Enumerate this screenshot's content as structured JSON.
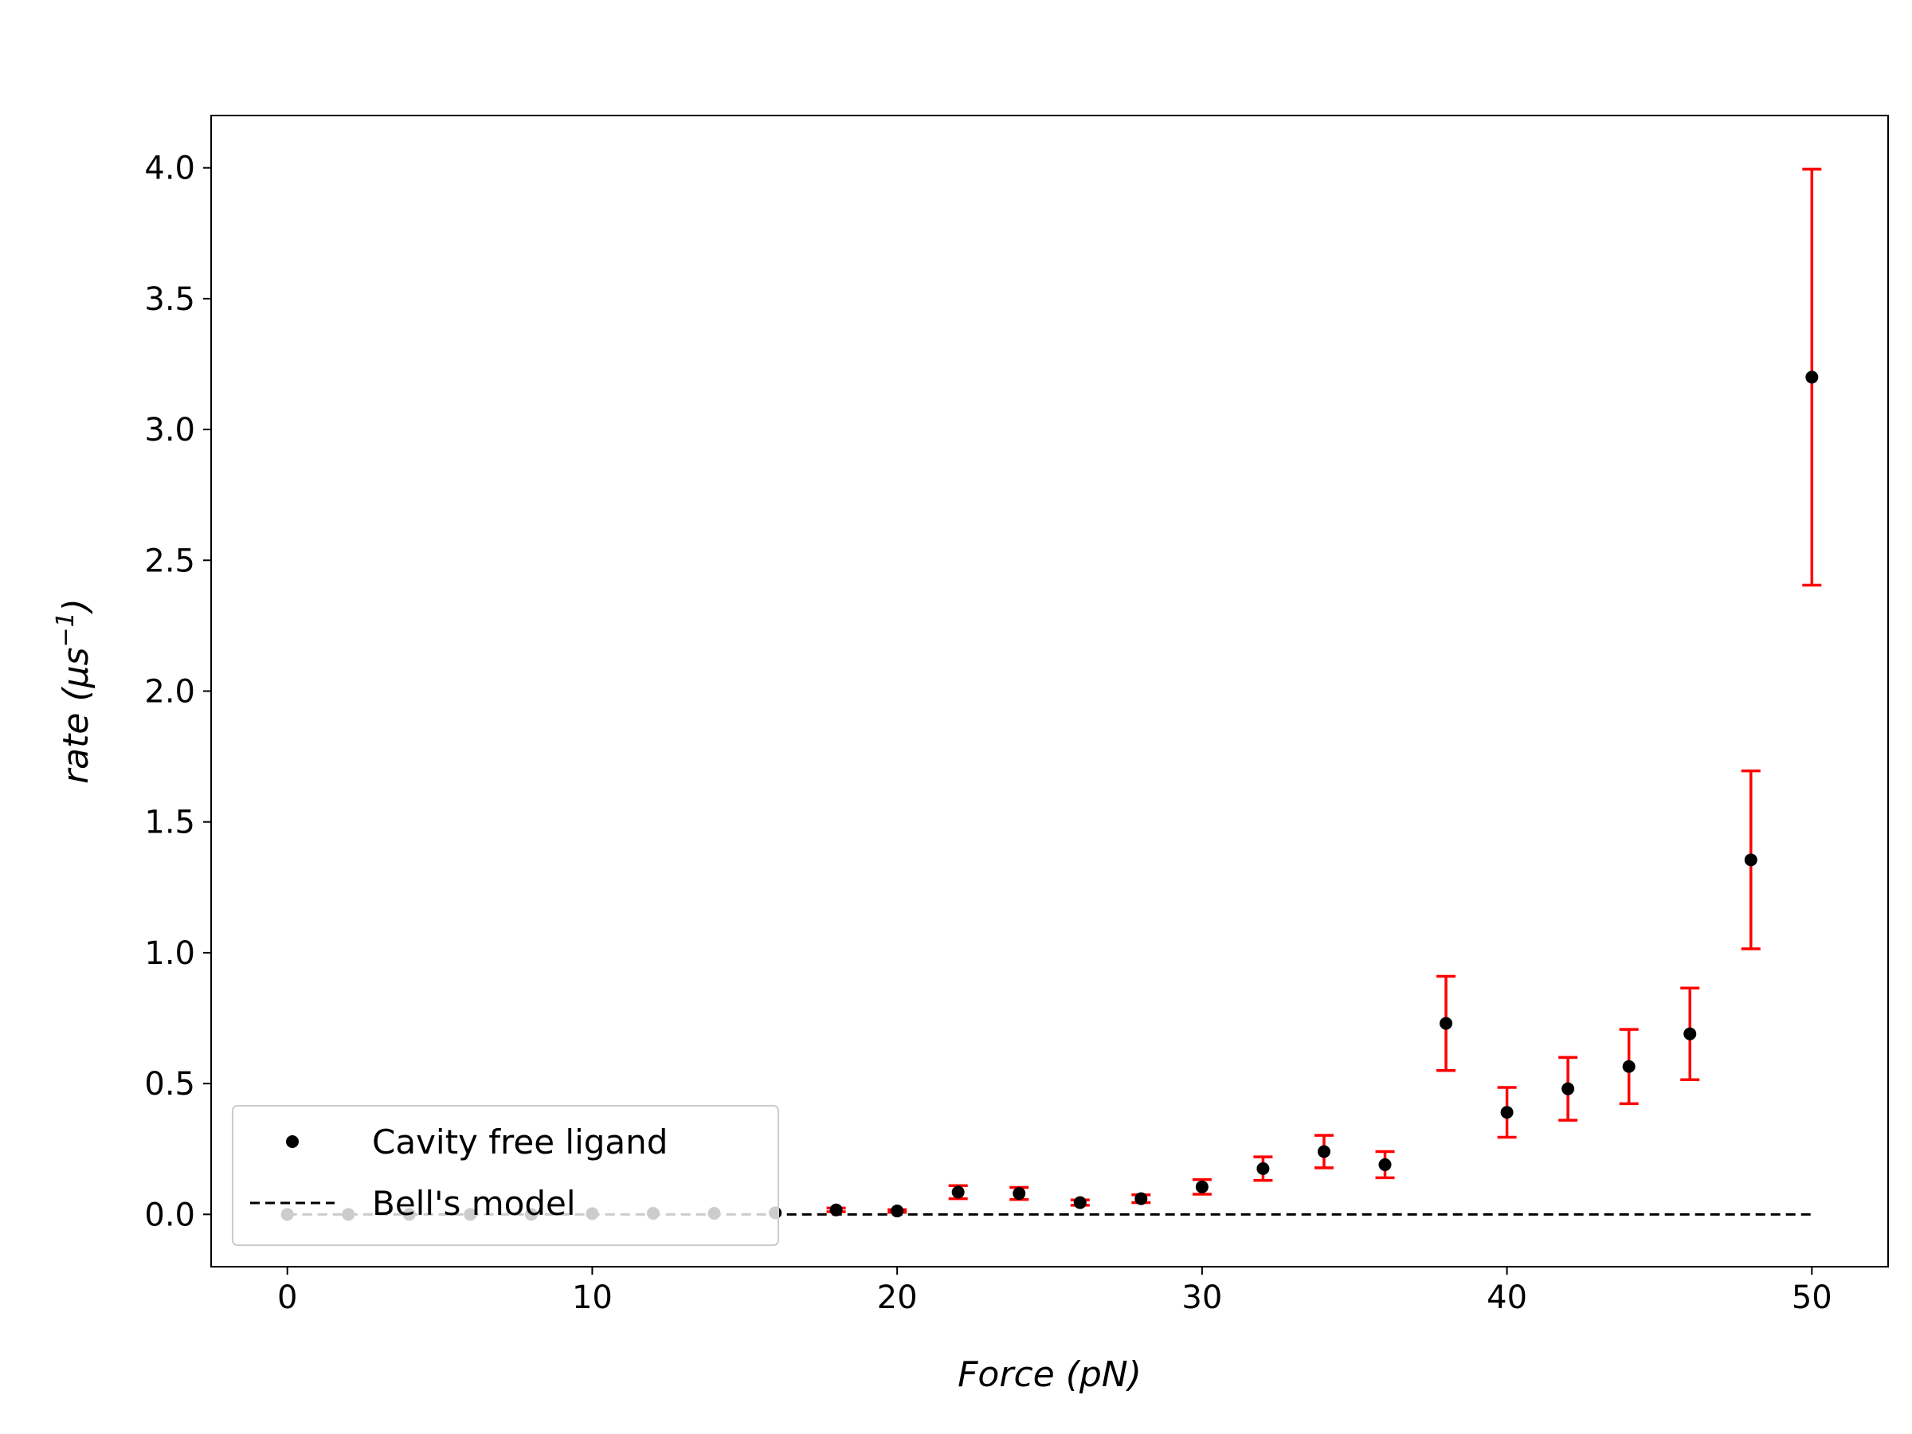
{
  "chart_data": {
    "type": "scatter",
    "title": "",
    "xlabel": "Force (pN)",
    "ylabel": "rate (μs⁻¹)",
    "ylabel_main": "rate (μs",
    "ylabel_sup": "−1",
    "ylabel_close": ")",
    "xlim": [
      -2.5,
      52.5
    ],
    "ylim": [
      -0.2,
      4.2
    ],
    "xticks": [
      0,
      10,
      20,
      30,
      40,
      50
    ],
    "yticks": [
      0.0,
      0.5,
      1.0,
      1.5,
      2.0,
      2.5,
      3.0,
      3.5,
      4.0
    ],
    "xtick_labels": [
      "0",
      "10",
      "20",
      "30",
      "40",
      "50"
    ],
    "ytick_labels": [
      "0.0",
      "0.5",
      "1.0",
      "1.5",
      "2.0",
      "2.5",
      "3.0",
      "3.5",
      "4.0"
    ],
    "grid": false,
    "legend": {
      "placement": "lower-left",
      "entries": [
        "Cavity free ligand",
        "Bell's model"
      ]
    },
    "series": [
      {
        "name": "Cavity free ligand",
        "style": "points",
        "color": "#000000",
        "errorbar_color": "#ff0000",
        "x": [
          0,
          2,
          4,
          6,
          8,
          10,
          12,
          14,
          16,
          18,
          20,
          22,
          24,
          26,
          28,
          30,
          32,
          34,
          36,
          38,
          40,
          42,
          44,
          46,
          48,
          50
        ],
        "y": [
          0.0,
          0.0,
          0.0,
          0.0,
          0.0,
          0.003,
          0.004,
          0.004,
          0.006,
          0.017,
          0.013,
          0.085,
          0.08,
          0.045,
          0.06,
          0.105,
          0.175,
          0.24,
          0.19,
          0.73,
          0.39,
          0.48,
          0.565,
          0.69,
          1.355,
          3.2
        ],
        "err": [
          0.0,
          0.0,
          0.0,
          0.0,
          0.0,
          0.0,
          0.0,
          0.0,
          0.0,
          0.007,
          0.005,
          0.025,
          0.023,
          0.01,
          0.015,
          0.028,
          0.045,
          0.062,
          0.05,
          0.18,
          0.095,
          0.12,
          0.142,
          0.175,
          0.34,
          0.795
        ]
      },
      {
        "name": "Bell's model",
        "style": "dashed-line",
        "color": "#000000",
        "x": [
          0,
          50
        ],
        "y": [
          0.0,
          0.0
        ]
      }
    ]
  }
}
